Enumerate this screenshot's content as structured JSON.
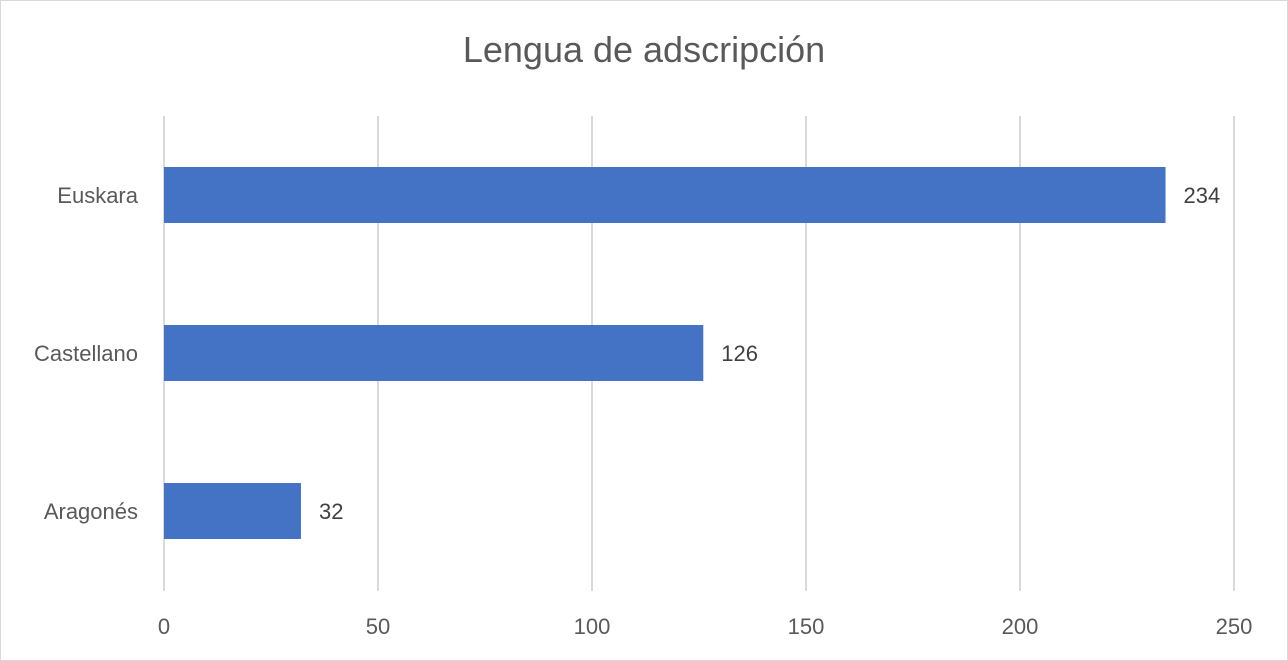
{
  "chart_data": {
    "type": "bar",
    "orientation": "horizontal",
    "title": "Lengua de adscripción",
    "categories": [
      "Euskara",
      "Castellano",
      "Aragonés"
    ],
    "values": [
      234,
      126,
      32
    ],
    "data_labels": [
      "234",
      "126",
      "32"
    ],
    "xlim": [
      0,
      250
    ],
    "x_ticks": [
      0,
      50,
      100,
      150,
      200,
      250
    ],
    "grid": true,
    "legend": "none",
    "colors": {
      "bar": "#4472c4",
      "grid": "#d9d9d9",
      "text": "#595959"
    }
  }
}
